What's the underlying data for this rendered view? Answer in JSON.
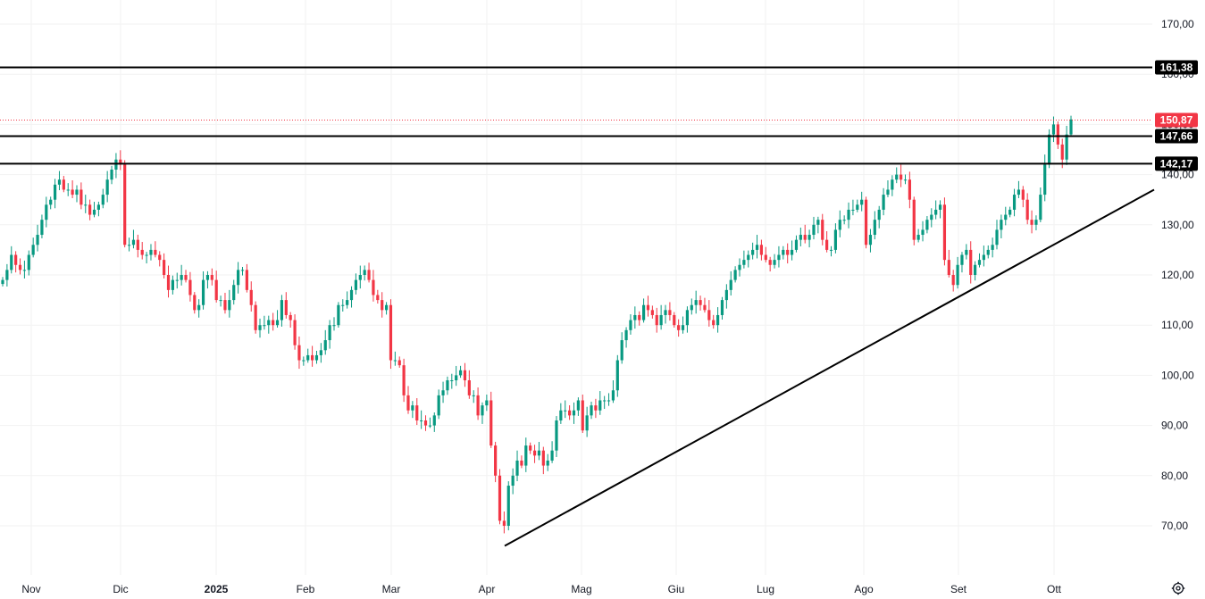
{
  "colors": {
    "up": "#089981",
    "down": "#f23645",
    "grid": "#f2f2f2",
    "level_line": "#000000",
    "trendline": "#000000",
    "last_price": "#f23645",
    "axis_text": "#131722"
  },
  "icons": {
    "settings": "gear-icon"
  },
  "chart_data": {
    "type": "candlestick",
    "x_axis_labels": [
      "Nov",
      "Dic",
      "2025",
      "Feb",
      "Mar",
      "Apr",
      "Mag",
      "Giu",
      "Lug",
      "Ago",
      "Set",
      "Ott"
    ],
    "y_axis_ticks": [
      "70,00",
      "80,00",
      "90,00",
      "100,00",
      "110,00",
      "120,00",
      "130,00",
      "140,00",
      "150,00",
      "160,00",
      "170,00"
    ],
    "ylim": [
      63,
      172
    ],
    "grid": true,
    "horizontal_levels": [
      {
        "value": 161.38,
        "label": "161,38"
      },
      {
        "value": 147.66,
        "label": "147,66"
      },
      {
        "value": 142.17,
        "label": "142,17"
      }
    ],
    "last_price": {
      "value": 150.87,
      "label": "150,87"
    },
    "trendline": {
      "start": {
        "date": "Apr",
        "value": 66
      },
      "end": {
        "date": "Ott",
        "value": 137
      }
    },
    "closes": [
      119,
      121,
      124,
      122,
      121,
      121,
      124,
      126,
      128,
      131,
      134,
      135,
      138,
      139,
      137,
      137,
      136,
      137,
      134,
      134,
      132,
      133,
      134,
      136,
      139,
      141,
      143,
      142,
      126,
      126,
      127,
      125,
      124,
      124,
      125,
      124,
      123,
      120,
      117,
      119,
      119,
      120,
      119,
      116,
      113,
      114,
      119,
      120,
      119,
      115,
      115,
      113,
      115,
      118,
      121,
      121,
      117,
      114,
      109,
      110,
      110,
      111,
      110,
      111,
      115,
      112,
      111,
      106,
      103,
      103,
      104,
      103,
      104,
      105,
      107,
      110,
      110,
      114,
      114,
      115,
      117,
      119,
      120,
      121,
      119,
      116,
      115,
      113,
      114,
      103,
      103,
      102,
      96,
      93,
      94,
      91,
      91,
      90,
      90,
      92,
      96,
      97,
      99,
      99,
      100,
      101,
      99,
      96,
      96,
      92,
      94,
      95,
      86,
      80,
      71,
      70,
      78,
      80,
      83,
      82,
      86,
      85,
      84,
      85,
      82,
      83,
      85,
      91,
      93,
      93,
      92,
      93,
      95,
      89,
      92,
      94,
      93,
      95,
      95,
      95,
      97,
      103,
      107,
      109,
      111,
      112,
      111,
      114,
      113,
      112,
      110,
      112,
      113,
      112,
      110,
      109,
      110,
      113,
      114,
      115,
      114,
      113,
      111,
      110,
      112,
      115,
      117,
      119,
      121,
      122,
      123,
      124,
      125,
      126,
      124,
      123,
      122,
      123,
      124,
      125,
      124,
      125,
      127,
      128,
      127,
      128,
      130,
      131,
      127,
      125,
      125,
      129,
      131,
      131,
      133,
      133,
      134,
      135,
      126,
      128,
      131,
      133,
      136,
      137,
      139,
      140,
      139,
      139,
      135,
      127,
      128,
      129,
      131,
      132,
      133,
      134,
      123,
      120,
      118,
      122,
      124,
      125,
      120,
      122,
      123,
      124,
      125,
      126,
      129,
      131,
      132,
      133,
      136,
      137,
      135,
      131,
      130,
      131,
      136,
      142,
      148,
      150,
      146,
      143,
      148,
      151
    ]
  }
}
